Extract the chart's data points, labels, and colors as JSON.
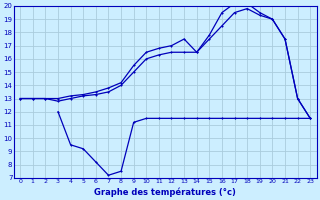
{
  "title": "Graphe des températures (°c)",
  "bg_color": "#cceeff",
  "grid_color": "#aaccdd",
  "line_color": "#0000bb",
  "xlim": [
    -0.5,
    23.5
  ],
  "ylim": [
    7,
    20
  ],
  "yticks": [
    7,
    8,
    9,
    10,
    11,
    12,
    13,
    14,
    15,
    16,
    17,
    18,
    19,
    20
  ],
  "xticks": [
    0,
    1,
    2,
    3,
    4,
    5,
    6,
    7,
    8,
    9,
    10,
    11,
    12,
    13,
    14,
    15,
    16,
    17,
    18,
    19,
    20,
    21,
    22,
    23
  ],
  "line1_x": [
    0,
    1,
    2,
    3,
    4,
    5,
    6,
    7,
    8,
    9,
    10,
    11,
    12,
    13,
    14,
    15,
    16,
    17,
    18,
    19,
    20,
    21,
    22,
    23
  ],
  "line1_y": [
    13,
    13,
    13,
    13,
    13.2,
    13.3,
    13.5,
    13.8,
    14.2,
    15.5,
    16.5,
    16.8,
    17.0,
    17.5,
    16.5,
    17.8,
    19.5,
    20.2,
    20.2,
    19.5,
    19.0,
    17.5,
    13.0,
    11.5
  ],
  "line2_x": [
    0,
    1,
    2,
    3,
    4,
    5,
    6,
    7,
    8,
    9,
    10,
    11,
    12,
    13,
    14,
    15,
    16,
    17,
    18,
    19,
    20,
    21,
    22,
    23
  ],
  "line2_y": [
    13,
    13,
    13,
    12.8,
    13.0,
    13.2,
    13.3,
    13.5,
    14.0,
    15.0,
    16.0,
    16.3,
    16.5,
    16.5,
    16.5,
    17.5,
    18.5,
    19.5,
    19.8,
    19.3,
    19.0,
    17.5,
    13.0,
    11.5
  ],
  "line3_x": [
    3,
    4,
    5,
    6,
    7,
    8,
    9,
    10,
    11,
    12,
    13,
    14,
    15,
    16,
    17,
    18,
    19,
    20,
    21,
    22,
    23
  ],
  "line3_y": [
    12.0,
    9.5,
    9.2,
    8.2,
    7.2,
    7.5,
    11.2,
    11.5,
    11.5,
    11.5,
    11.5,
    11.5,
    11.5,
    11.5,
    11.5,
    11.5,
    11.5,
    11.5,
    11.5,
    11.5,
    11.5
  ]
}
